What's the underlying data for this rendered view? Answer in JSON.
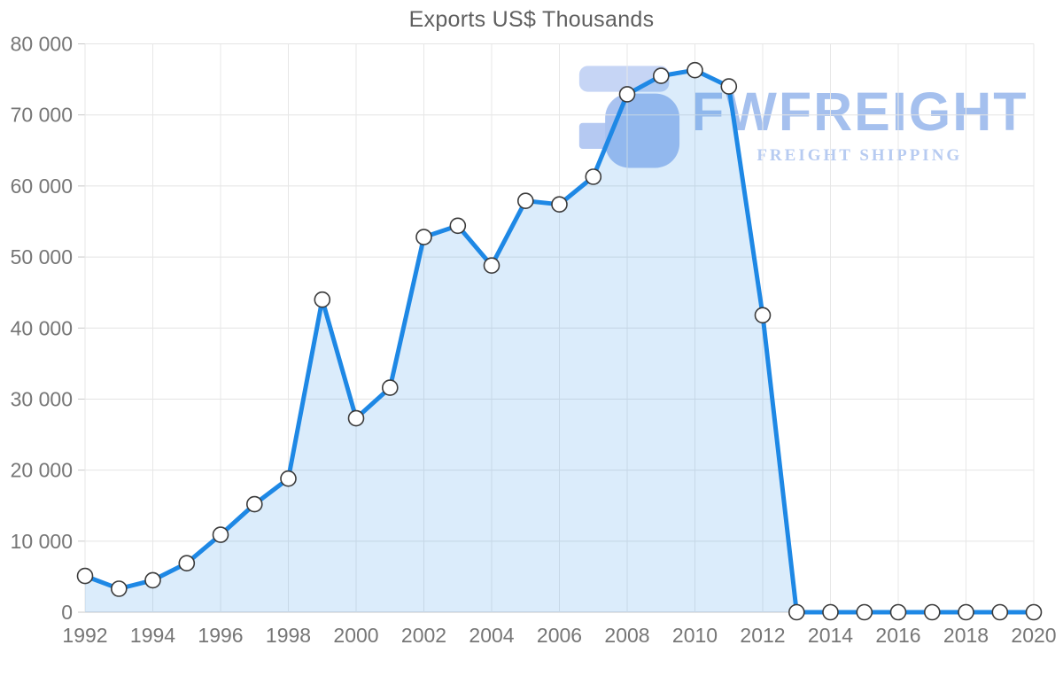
{
  "page": {
    "background": "#ffffff"
  },
  "chart_data": {
    "type": "area",
    "title": "Exports US$ Thousands",
    "x": [
      1992,
      1993,
      1994,
      1995,
      1996,
      1997,
      1998,
      1999,
      2000,
      2001,
      2002,
      2003,
      2004,
      2005,
      2006,
      2007,
      2008,
      2009,
      2010,
      2011,
      2012,
      2013,
      2014,
      2015,
      2016,
      2017,
      2018,
      2019,
      2020
    ],
    "values": [
      5100,
      3300,
      4500,
      6900,
      10900,
      15200,
      18800,
      44000,
      27300,
      31600,
      52800,
      54400,
      48800,
      57900,
      57400,
      61300,
      72900,
      75500,
      76300,
      74000,
      41800,
      0,
      0,
      0,
      0,
      0,
      0,
      0,
      0
    ],
    "ylim": [
      0,
      80000
    ],
    "yticks": [
      0,
      10000,
      20000,
      30000,
      40000,
      50000,
      60000,
      70000,
      80000
    ],
    "ytick_labels": [
      "0",
      "10 000",
      "20 000",
      "30 000",
      "40 000",
      "50 000",
      "60 000",
      "70 000",
      "80 000"
    ],
    "xtick_years": [
      1992,
      1994,
      1996,
      1998,
      2000,
      2002,
      2004,
      2006,
      2008,
      2010,
      2012,
      2014,
      2016,
      2018,
      2020
    ],
    "xtick_labels": [
      "1992",
      "1994",
      "1996",
      "1998",
      "2000",
      "2002",
      "2004",
      "2006",
      "2008",
      "2010",
      "2012",
      "2014",
      "2016",
      "2018",
      "2020"
    ],
    "grid": true,
    "legend": "none",
    "line_color": "#1e88e5",
    "fill_color": "rgba(30,136,229,0.16)",
    "marker_fill": "#ffffff",
    "marker_stroke": "#3b3b3b",
    "grid_color": "#e4e4e4",
    "axis_color": "#c8c8c8",
    "tick_label_color": "#767676",
    "title_color": "#5f5f5f"
  },
  "watermark": {
    "brand": "FWFREIGHT",
    "tagline": "FREIGHT SHIPPING",
    "brand_color": "#a5c0ee",
    "tagline_color": "#b7cbf1",
    "glyph_color": "#a9c2f0",
    "glyph_light_color": "#c6d5f5",
    "glyph_mid_color": "#b5c9f2"
  }
}
